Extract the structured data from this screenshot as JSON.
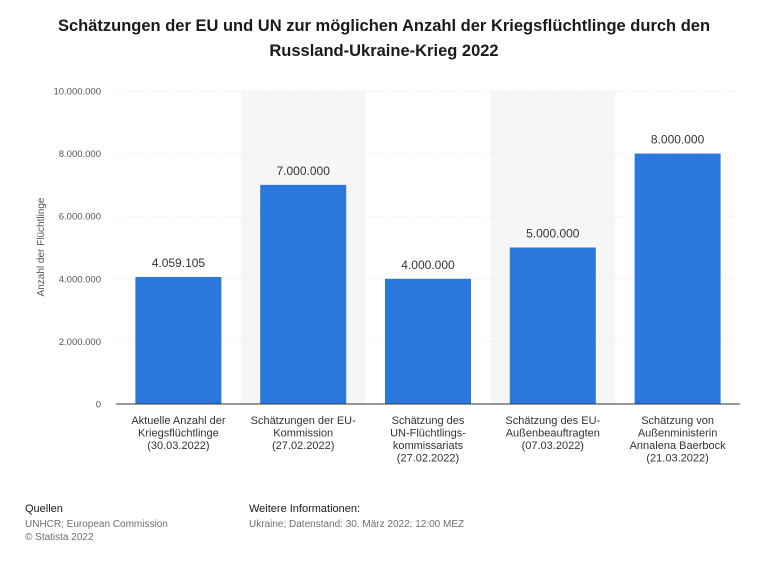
{
  "chart_data": {
    "type": "bar",
    "title": "Schätzungen der EU und UN zur möglichen Anzahl der Kriegsflüchtlinge durch den Russland-Ukraine-Krieg 2022",
    "xlabel": "",
    "ylabel": "Anzahl der Flüchtlinge",
    "ylim": [
      0,
      10000000
    ],
    "yticks": [
      0,
      2000000,
      4000000,
      6000000,
      8000000,
      10000000
    ],
    "ytick_labels": [
      "0",
      "2.000.000",
      "4.000.000",
      "6.000.000",
      "8.000.000",
      "10.000.000"
    ],
    "categories": [
      "Aktuelle Anzahl der Kriegsflüchtlinge (30.03.2022)",
      "Schätzungen der EU-Kommission (27.02.2022)",
      "Schätzung des UN-Flüchtlings-kommissariats (27.02.2022)",
      "Schätzung des EU-Außenbeauftragten (07.03.2022)",
      "Schätzung von Außenministerin Annalena Baerbock (21.03.2022)"
    ],
    "category_lines": [
      [
        "Aktuelle Anzahl der",
        "Kriegsflüchtlinge",
        "(30.03.2022)"
      ],
      [
        "Schätzungen der EU-",
        "Kommission",
        "(27.02.2022)"
      ],
      [
        "Schätzung des",
        "UN-Flüchtlings-",
        "kommissariats",
        "(27.02.2022)"
      ],
      [
        "Schätzung des EU-",
        "Außenbeauftragten",
        "(07.03.2022)"
      ],
      [
        "Schätzung von",
        "Außenministerin",
        "Annalena Baerbock",
        "(21.03.2022)"
      ]
    ],
    "values": [
      4059105,
      7000000,
      4000000,
      5000000,
      8000000
    ],
    "value_labels": [
      "4.059.105",
      "7.000.000",
      "4.000.000",
      "5.000.000",
      "8.000.000"
    ],
    "colors": {
      "bar": "#2a78de",
      "grid": "#e6e6e6",
      "band": "#f6f6f6",
      "axis": "#333333"
    }
  },
  "footer": {
    "sources_label": "Quellen",
    "sources": [
      "UNHCR; European Commission",
      "© Statista 2022"
    ],
    "info_label": "Weitere Informationen:",
    "info": "Ukraine; Datenstand: 30. März 2022; 12:00 MEZ"
  }
}
